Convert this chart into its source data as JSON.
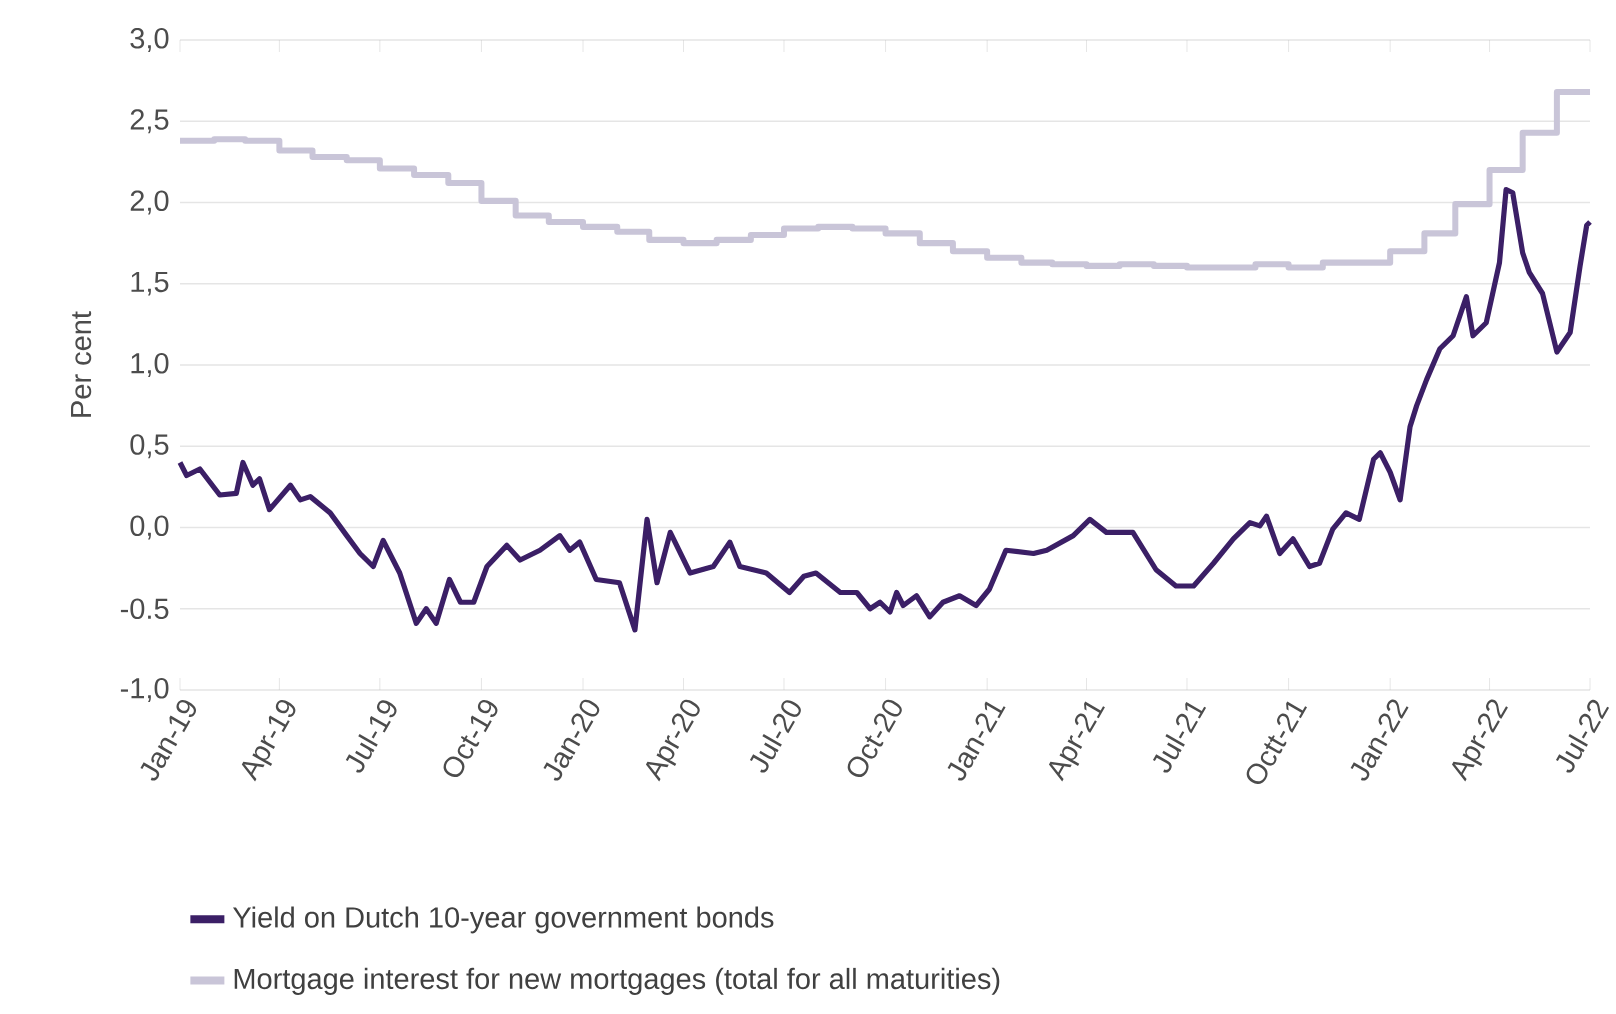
{
  "chart_data": {
    "type": "line",
    "ylabel": "Per cent",
    "xlim": [
      "2019-01-01",
      "2022-07-01"
    ],
    "xticks": [
      {
        "value": "2019-01-01",
        "label": "Jan-19"
      },
      {
        "value": "2019-04-01",
        "label": "Apr-19"
      },
      {
        "value": "2019-07-01",
        "label": "Jul-19"
      },
      {
        "value": "2019-10-01",
        "label": "Oct-19"
      },
      {
        "value": "2020-01-01",
        "label": "Jan-20"
      },
      {
        "value": "2020-04-01",
        "label": "Apr-20"
      },
      {
        "value": "2020-07-01",
        "label": "Jul-20"
      },
      {
        "value": "2020-10-01",
        "label": "Oct-20"
      },
      {
        "value": "2021-01-01",
        "label": "Jan-21"
      },
      {
        "value": "2021-04-01",
        "label": "Apr-21"
      },
      {
        "value": "2021-07-01",
        "label": "Jul-21"
      },
      {
        "value": "2021-10-01",
        "label": "Octt-21"
      },
      {
        "value": "2022-01-01",
        "label": "Jan-22"
      },
      {
        "value": "2022-04-01",
        "label": "Apr-22"
      },
      {
        "value": "2022-07-01",
        "label": "Jul-22"
      }
    ],
    "ylim": [
      -1,
      3
    ],
    "yticks": [
      {
        "value": -1,
        "label": "-1,0"
      },
      {
        "value": -0.5,
        "label": "-0.5"
      },
      {
        "value": 0,
        "label": "0,0"
      },
      {
        "value": 0.5,
        "label": "0,5"
      },
      {
        "value": 1,
        "label": "1,0"
      },
      {
        "value": 1.5,
        "label": "1,5"
      },
      {
        "value": 2,
        "label": "2,0"
      },
      {
        "value": 2.5,
        "label": "2,5"
      },
      {
        "value": 3,
        "label": "3,0"
      }
    ],
    "grid": "y",
    "legend": "bottom",
    "marker": "none",
    "series": [
      {
        "name": "Yield on Dutch 10-year government bonds",
        "type": "line",
        "color": "#3b1f66",
        "x": [
          "2019-01-01",
          "2019-01-07",
          "2019-01-19",
          "2019-02-06",
          "2019-02-21",
          "2019-02-27",
          "2019-03-08",
          "2019-03-14",
          "2019-03-23",
          "2019-04-11",
          "2019-04-20",
          "2019-04-29",
          "2019-05-17",
          "2019-06-01",
          "2019-06-13",
          "2019-06-25",
          "2019-07-04",
          "2019-07-19",
          "2019-08-03",
          "2019-08-12",
          "2019-08-21",
          "2019-09-02",
          "2019-09-12",
          "2019-09-24",
          "2019-10-06",
          "2019-10-24",
          "2019-11-05",
          "2019-11-23",
          "2019-12-11",
          "2019-12-20",
          "2019-12-29",
          "2020-01-13",
          "2020-02-03",
          "2020-02-17",
          "2020-02-28",
          "2020-03-08",
          "2020-03-20",
          "2020-04-07",
          "2020-04-28",
          "2020-05-13",
          "2020-05-22",
          "2020-06-15",
          "2020-07-06",
          "2020-07-19",
          "2020-07-30",
          "2020-08-21",
          "2020-09-05",
          "2020-09-17",
          "2020-09-26",
          "2020-10-05",
          "2020-10-11",
          "2020-10-17",
          "2020-10-29",
          "2020-11-10",
          "2020-11-22",
          "2020-12-07",
          "2020-12-22",
          "2021-01-03",
          "2021-01-18",
          "2021-02-12",
          "2021-02-24",
          "2021-03-20",
          "2021-04-04",
          "2021-04-19",
          "2021-05-13",
          "2021-06-03",
          "2021-06-21",
          "2021-07-07",
          "2021-07-25",
          "2021-08-12",
          "2021-08-27",
          "2021-09-05",
          "2021-09-11",
          "2021-09-23",
          "2021-10-05",
          "2021-10-20",
          "2021-10-29",
          "2021-11-10",
          "2021-11-22",
          "2021-12-04",
          "2021-12-17",
          "2021-12-23",
          "2022-01-01",
          "2022-01-10",
          "2022-01-19",
          "2022-01-25",
          "2022-02-03",
          "2022-02-15",
          "2022-02-27",
          "2022-03-11",
          "2022-03-17",
          "2022-03-29",
          "2022-04-10",
          "2022-04-16",
          "2022-04-22",
          "2022-05-01",
          "2022-05-07",
          "2022-05-19",
          "2022-06-01",
          "2022-06-13",
          "2022-06-22",
          "2022-06-28",
          "2022-07-01"
        ],
        "values": [
          0.4,
          0.32,
          0.36,
          0.2,
          0.21,
          0.4,
          0.26,
          0.3,
          0.11,
          0.26,
          0.17,
          0.19,
          0.09,
          -0.05,
          -0.16,
          -0.24,
          -0.08,
          -0.28,
          -0.59,
          -0.5,
          -0.59,
          -0.32,
          -0.46,
          -0.46,
          -0.24,
          -0.11,
          -0.2,
          -0.14,
          -0.05,
          -0.14,
          -0.09,
          -0.32,
          -0.34,
          -0.63,
          0.05,
          -0.34,
          -0.03,
          -0.28,
          -0.24,
          -0.09,
          -0.24,
          -0.28,
          -0.4,
          -0.3,
          -0.28,
          -0.4,
          -0.4,
          -0.5,
          -0.46,
          -0.52,
          -0.4,
          -0.48,
          -0.42,
          -0.55,
          -0.46,
          -0.42,
          -0.48,
          -0.38,
          -0.14,
          -0.16,
          -0.14,
          -0.05,
          0.05,
          -0.03,
          -0.03,
          -0.26,
          -0.36,
          -0.36,
          -0.22,
          -0.07,
          0.03,
          0.01,
          0.07,
          -0.16,
          -0.07,
          -0.24,
          -0.22,
          -0.01,
          0.09,
          0.05,
          0.42,
          0.46,
          0.34,
          0.17,
          0.62,
          0.75,
          0.91,
          1.1,
          1.18,
          1.42,
          1.18,
          1.26,
          1.63,
          2.08,
          2.06,
          1.69,
          1.57,
          1.44,
          1.08,
          1.2,
          1.61,
          1.86,
          1.88
        ]
      },
      {
        "name": "Mortgage interest for new mortgages (total for all maturities)",
        "type": "step",
        "color": "#c9c5d8",
        "x": [
          "2019-01-01",
          "2019-02-01",
          "2019-03-01",
          "2019-04-01",
          "2019-05-01",
          "2019-06-01",
          "2019-07-01",
          "2019-08-01",
          "2019-09-01",
          "2019-10-01",
          "2019-11-01",
          "2019-12-01",
          "2020-01-01",
          "2020-02-01",
          "2020-03-01",
          "2020-04-01",
          "2020-05-01",
          "2020-06-01",
          "2020-07-01",
          "2020-08-01",
          "2020-09-01",
          "2020-10-01",
          "2020-11-01",
          "2020-12-01",
          "2021-01-01",
          "2021-02-01",
          "2021-03-01",
          "2021-04-01",
          "2021-05-01",
          "2021-06-01",
          "2021-07-01",
          "2021-08-01",
          "2021-09-01",
          "2021-10-01",
          "2021-11-01",
          "2021-12-01",
          "2022-01-01",
          "2022-02-01",
          "2022-03-01",
          "2022-04-01",
          "2022-05-01",
          "2022-06-01",
          "2022-07-01"
        ],
        "values": [
          2.38,
          2.39,
          2.38,
          2.32,
          2.28,
          2.26,
          2.21,
          2.17,
          2.12,
          2.01,
          1.92,
          1.88,
          1.85,
          1.82,
          1.77,
          1.75,
          1.77,
          1.8,
          1.84,
          1.85,
          1.84,
          1.81,
          1.75,
          1.7,
          1.66,
          1.63,
          1.62,
          1.61,
          1.62,
          1.61,
          1.6,
          1.6,
          1.62,
          1.6,
          1.63,
          1.63,
          1.7,
          1.81,
          1.99,
          2.2,
          2.43,
          2.68,
          2.68
        ]
      }
    ]
  }
}
